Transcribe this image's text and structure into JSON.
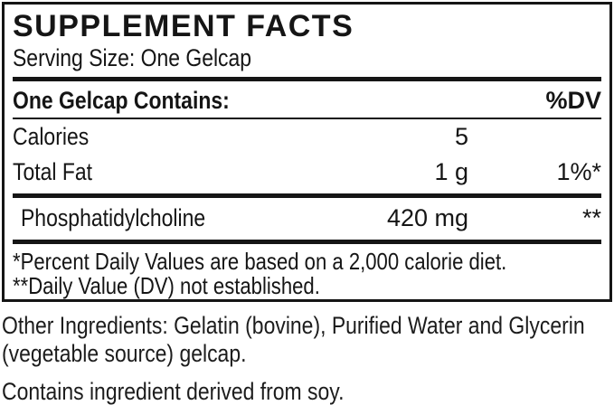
{
  "label": {
    "title": "SUPPLEMENT FACTS",
    "serving_size": "Serving Size: One Gelcap",
    "header": {
      "contains": "One Gelcap Contains:",
      "dv": "%DV"
    },
    "rows": [
      {
        "name": "Calories",
        "amount": "5",
        "dv": ""
      },
      {
        "name": "Total Fat",
        "amount": "1 g",
        "dv": "1%*"
      },
      {
        "name": "Phosphatidylcholine",
        "amount": "420 mg",
        "dv": "**"
      }
    ],
    "footnotes": [
      "*Percent Daily Values are based on a 2,000 calorie diet.",
      "**Daily Value (DV) not established."
    ],
    "other_ingredients_lines": [
      "Other Ingredients: Gelatin (bovine), Purified Water and Glycerin",
      "(vegetable source) gelcap."
    ],
    "contains_statement": "Contains ingredient derived from soy.",
    "colors": {
      "text": "#151515",
      "border": "#151515",
      "background": "#ffffff"
    }
  }
}
